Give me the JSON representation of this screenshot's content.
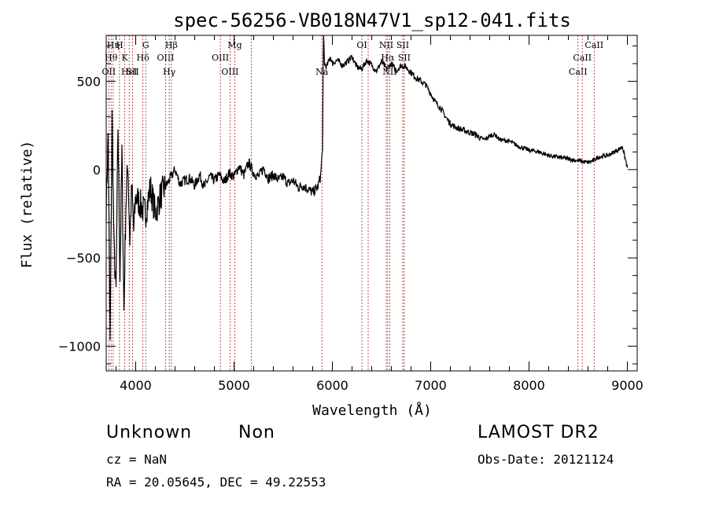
{
  "chart_data": {
    "type": "line",
    "title": "spec-56256-VB018N47V1_sp12-041.fits",
    "xlabel": "Wavelength (Å)",
    "ylabel": "Flux (relative)",
    "xlim": [
      3700,
      9100
    ],
    "ylim": [
      -1140,
      760
    ],
    "x_ticks": [
      4000,
      5000,
      6000,
      7000,
      8000,
      9000
    ],
    "y_ticks": [
      -1000,
      -500,
      0,
      500
    ],
    "grid": false,
    "series": [
      {
        "x": [
          3700,
          3720,
          3740,
          3760,
          3780,
          3800,
          3820,
          3840,
          3860,
          3880,
          3900,
          3920,
          3940,
          3960,
          3980,
          4000,
          4050,
          4100,
          4150,
          4200,
          4250,
          4300,
          4350,
          4400,
          4450,
          4500,
          4550,
          4600,
          4650,
          4700,
          4750,
          4800,
          4850,
          4900,
          4950,
          5000,
          5050,
          5100,
          5150,
          5200,
          5250,
          5300,
          5350,
          5400,
          5450,
          5500,
          5550,
          5600,
          5650,
          5700,
          5750,
          5800,
          5850,
          5880,
          5900,
          5910,
          5920,
          5940,
          5960,
          5980,
          6000,
          6050,
          6100,
          6150,
          6200,
          6250,
          6300,
          6350,
          6400,
          6450,
          6500,
          6550,
          6600,
          6650,
          6700,
          6750,
          6800,
          6850,
          6900,
          6950,
          7000,
          7050,
          7100,
          7150,
          7200,
          7250,
          7300,
          7350,
          7400,
          7450,
          7500,
          7550,
          7600,
          7650,
          7700,
          7800,
          7900,
          8000,
          8100,
          8200,
          8300,
          8400,
          8500,
          8600,
          8650,
          8700,
          8800,
          8900,
          8950,
          9000
        ],
        "y": [
          -200,
          200,
          -1000,
          300,
          -450,
          -700,
          250,
          -600,
          100,
          -800,
          -200,
          50,
          -400,
          -100,
          -350,
          -150,
          -200,
          -250,
          -100,
          -250,
          -150,
          -100,
          -50,
          0,
          -80,
          -60,
          -50,
          -90,
          -30,
          -100,
          -40,
          -60,
          -30,
          -70,
          -20,
          -40,
          20,
          -30,
          40,
          -20,
          -40,
          10,
          -50,
          -30,
          -60,
          -40,
          -80,
          -60,
          -100,
          -90,
          -110,
          -130,
          -100,
          -40,
          120,
          780,
          600,
          580,
          610,
          640,
          600,
          620,
          590,
          610,
          640,
          580,
          570,
          620,
          590,
          560,
          610,
          570,
          600,
          560,
          590,
          580,
          550,
          520,
          500,
          480,
          430,
          380,
          350,
          300,
          260,
          240,
          230,
          220,
          210,
          200,
          180,
          170,
          190,
          200,
          170,
          160,
          130,
          110,
          100,
          80,
          70,
          60,
          50,
          40,
          50,
          70,
          80,
          110,
          130,
          10
        ]
      }
    ],
    "line_markers": [
      {
        "label": "OII",
        "x": 3727,
        "row": 3
      },
      {
        "label": "Hθ",
        "x": 3750,
        "row": 2
      },
      {
        "label": "Hη",
        "x": 3771,
        "row": 1
      },
      {
        "label": "H",
        "x": 3835,
        "row": 1
      },
      {
        "label": "K",
        "x": 3889,
        "row": 2
      },
      {
        "label": "HeI",
        "x": 3934,
        "row": 3
      },
      {
        "label": "SII",
        "x": 3969,
        "row": 3
      },
      {
        "label": "Hδ",
        "x": 4073,
        "row": 2
      },
      {
        "label": "G",
        "x": 4102,
        "row": 1
      },
      {
        "label": "OIII",
        "x": 4304,
        "row": 2
      },
      {
        "label": "Hγ",
        "x": 4341,
        "row": 3
      },
      {
        "label": "Hβ",
        "x": 4363,
        "row": 1
      },
      {
        "label": "OIII",
        "x": 4861,
        "row": 2
      },
      {
        "label": "OIII",
        "x": 4959,
        "row": 3
      },
      {
        "label": "Mg",
        "x": 5007,
        "row": 1
      },
      {
        "label": "",
        "x": 5175,
        "row": 0
      },
      {
        "label": "Na",
        "x": 5894,
        "row": 3
      },
      {
        "label": "OI",
        "x": 6300,
        "row": 1
      },
      {
        "label": "",
        "x": 6364,
        "row": 0
      },
      {
        "label": "NII",
        "x": 6548,
        "row": 1
      },
      {
        "label": "Hα",
        "x": 6563,
        "row": 2
      },
      {
        "label": "NII",
        "x": 6583,
        "row": 3
      },
      {
        "label": "SII",
        "x": 6716,
        "row": 1
      },
      {
        "label": "SII",
        "x": 6731,
        "row": 2
      },
      {
        "label": "CaII",
        "x": 8498,
        "row": 3
      },
      {
        "label": "CaII",
        "x": 8542,
        "row": 2
      },
      {
        "label": "CaII",
        "x": 8662,
        "row": 1
      }
    ]
  },
  "info": {
    "class_label": "Unknown",
    "subclass_label": "Non",
    "survey": "LAMOST DR2",
    "cz": "cz = NaN",
    "obs_date": "Obs-Date: 20121124",
    "coords": "RA =  20.05645, DEC =  49.22553"
  }
}
